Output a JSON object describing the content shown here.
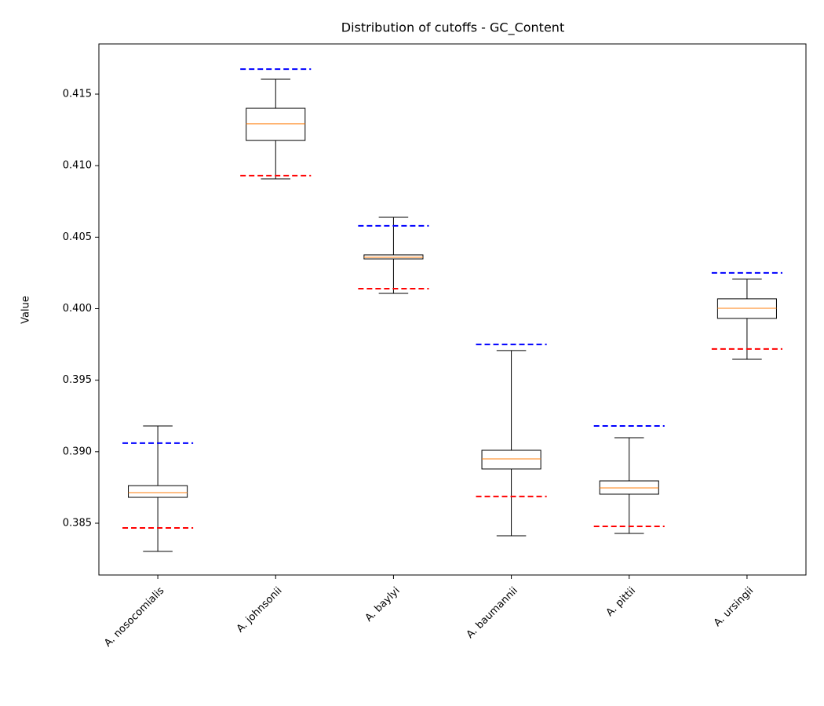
{
  "chart_data": {
    "type": "box",
    "title": "Distribution of cutoffs - GC_Content",
    "y_label": "Value",
    "categories": [
      "A. nosocomialis",
      "A. johnsonii",
      "A. baylyi",
      "A. baumannii",
      "A. pittii",
      "A. ursingii"
    ],
    "min": [
      0.38303,
      0.40908,
      0.40107,
      0.38412,
      0.38429,
      0.39646
    ],
    "q1": [
      0.38681,
      0.41176,
      0.40348,
      0.38879,
      0.38703,
      0.39932
    ],
    "median": [
      0.38714,
      0.41292,
      0.40359,
      0.3895,
      0.38747,
      0.40003
    ],
    "q3": [
      0.38763,
      0.41401,
      0.40376,
      0.3901,
      0.38796,
      0.40069
    ],
    "max": [
      0.3918,
      0.41604,
      0.40639,
      0.39707,
      0.39098,
      0.40206
    ],
    "upper_cutoff": [
      0.3906,
      0.41675,
      0.40579,
      0.3975,
      0.3918,
      0.4025
    ],
    "lower_cutoff": [
      0.38467,
      0.4093,
      0.4014,
      0.38687,
      0.38478,
      0.39718
    ],
    "box_color": "#000000",
    "median_color": "#ff7f0e",
    "upper_color": "#0000ff",
    "lower_color": "#ff0000",
    "ylim": [
      0.38138,
      0.41851
    ],
    "yticks": [
      0.385,
      {
        "value": 0.39,
        "label": "0.390"
      },
      0.395,
      {
        "value": 0.4,
        "label": "0.400"
      },
      0.405,
      {
        "value": 0.41,
        "label": "0.410"
      },
      0.415
    ]
  }
}
